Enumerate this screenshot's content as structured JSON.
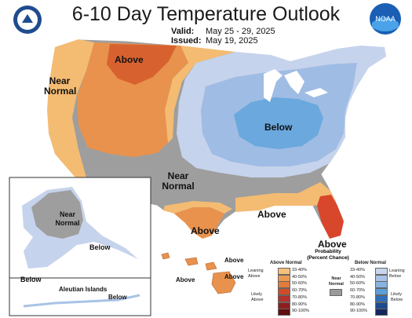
{
  "header": {
    "title": "6-10 Day Temperature Outlook",
    "valid_label": "Valid:",
    "valid_value": "May 25 - 29, 2025",
    "issued_label": "Issued:",
    "issued_value": "May 19, 2025"
  },
  "logos": {
    "right_text": "NOAA"
  },
  "regions": {
    "above_north": "Above",
    "near_normal_west_1": "Near",
    "near_normal_west_2": "Normal",
    "below_central": "Below",
    "near_normal_south_1": "Near",
    "near_normal_south_2": "Normal",
    "above_gulf": "Above",
    "above_texas": "Above",
    "above_florida": "Above",
    "alaska_near_1": "Near",
    "alaska_near_2": "Normal",
    "alaska_below_sw": "Below",
    "alaska_below_se": "Below",
    "aleutian_title": "Aleutian Islands",
    "aleutian_below": "Below",
    "hawaii_above_1": "Above",
    "hawaii_above_2": "Above",
    "hawaii_above_3": "Above"
  },
  "legend": {
    "title_1": "Probability",
    "title_2": "(Percent Chance)",
    "above_header": "Above Normal",
    "below_header": "Below Normal",
    "near_normal_1": "Near",
    "near_normal_2": "Normal",
    "leaning_above_1": "Leaning",
    "leaning_above_2": "Above",
    "likely_above_1": "Likely",
    "likely_above_2": "Above",
    "leaning_below_1": "Leaning",
    "leaning_below_2": "Below",
    "likely_below_1": "Likely",
    "likely_below_2": "Below",
    "above_bins": [
      "33-40%",
      "40-50%",
      "50-60%",
      "60-70%",
      "70-80%",
      "80-90%",
      "90-100%"
    ],
    "below_bins": [
      "33-40%",
      "40-50%",
      "50-60%",
      "60-70%",
      "70-80%",
      "80-90%",
      "90-100%"
    ],
    "above_colors": [
      "#f5c07a",
      "#eb9a54",
      "#e07b3a",
      "#cf4c2a",
      "#b5312b",
      "#8f1d1e",
      "#5e0e10"
    ],
    "below_colors": [
      "#c9d5ec",
      "#a9c3e6",
      "#86b3e2",
      "#5d9ed8",
      "#2f6fb8",
      "#1d4b8e",
      "#15275c"
    ],
    "near_color": "#9a9a9a"
  }
}
